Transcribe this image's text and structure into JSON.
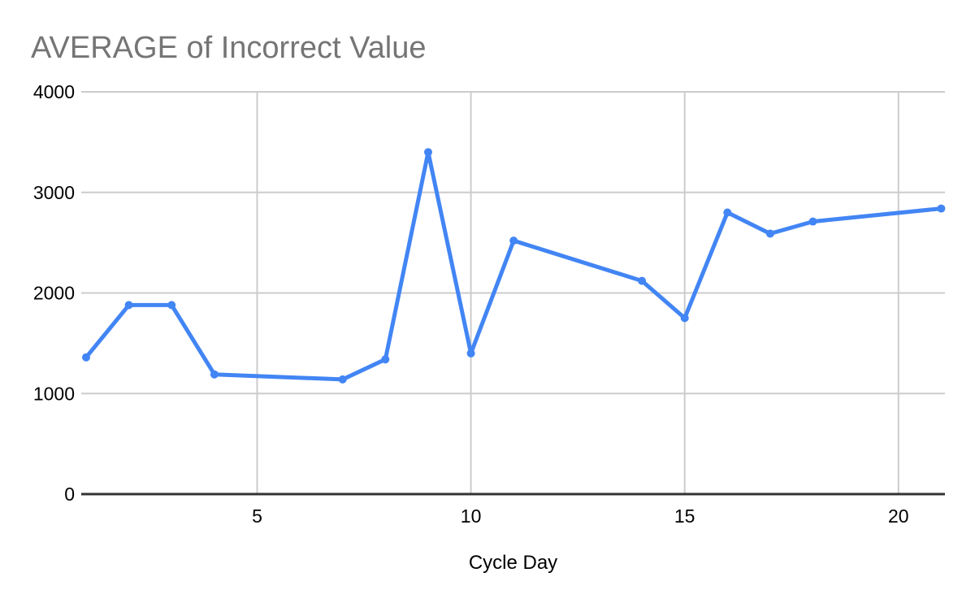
{
  "chart": {
    "title": "AVERAGE of Incorrect Value",
    "colors": {
      "background": "#ffffff",
      "title": "#757575",
      "series": "#4285f4",
      "gridline": "#cccccc",
      "axis_line": "#333333",
      "tick_label": "#000000",
      "axis_title": "#000000"
    }
  },
  "chart_data": {
    "type": "line",
    "title": "AVERAGE of Incorrect Value",
    "xlabel": "Cycle Day",
    "ylabel": "",
    "x": [
      1,
      2,
      3,
      4,
      7,
      8,
      9,
      10,
      11,
      14,
      15,
      16,
      17,
      18,
      21
    ],
    "series": [
      {
        "name": "AVERAGE of Incorrect Value",
        "values": [
          1360,
          1880,
          1880,
          1190,
          1140,
          1340,
          3400,
          1400,
          2520,
          2120,
          1750,
          2800,
          2590,
          2710,
          2840
        ]
      }
    ],
    "xticks": [
      5,
      10,
      15,
      20
    ],
    "yticks": [
      0,
      1000,
      2000,
      3000,
      4000
    ],
    "xlim": [
      1,
      21
    ],
    "ylim": [
      0,
      4000
    ],
    "grid": true,
    "legend": "none",
    "marker": "circle",
    "line_width": 5,
    "marker_radius": 5
  }
}
